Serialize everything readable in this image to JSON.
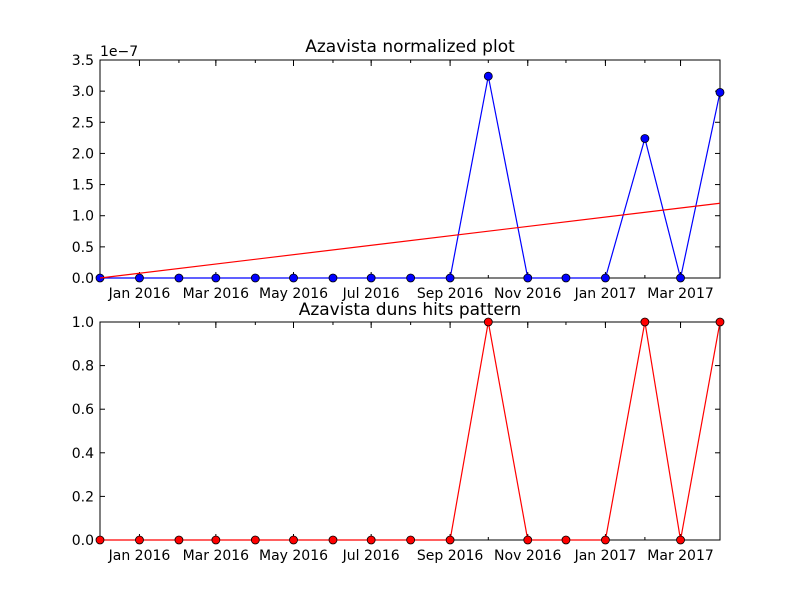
{
  "chart_data": [
    {
      "type": "line",
      "title": "Azavista normalized plot",
      "xlabel": "",
      "ylabel": "",
      "y_offset_label": "1e−7",
      "x": [
        "2015-12-01",
        "2016-01-01",
        "2016-02-01",
        "2016-03-01",
        "2016-04-01",
        "2016-05-01",
        "2016-06-01",
        "2016-07-01",
        "2016-08-01",
        "2016-09-01",
        "2016-10-01",
        "2016-11-01",
        "2016-12-01",
        "2017-01-01",
        "2017-02-01",
        "2017-03-01",
        "2017-04-01"
      ],
      "xlim": [
        "2015-12-01",
        "2017-04-01"
      ],
      "x_ticks": [
        "Jan 2016",
        "Mar 2016",
        "May 2016",
        "Jul 2016",
        "Sep 2016",
        "Nov 2016",
        "Jan 2017",
        "Mar 2017"
      ],
      "x_tick_dates": [
        "2016-01-01",
        "2016-03-01",
        "2016-05-01",
        "2016-07-01",
        "2016-09-01",
        "2016-11-01",
        "2017-01-01",
        "2017-03-01"
      ],
      "ylim": [
        0,
        3.5
      ],
      "y_ticks": [
        "0.0",
        "0.5",
        "1.0",
        "1.5",
        "2.0",
        "2.5",
        "3.0",
        "3.5"
      ],
      "grid": false,
      "series": [
        {
          "color": "#0000ff",
          "marker": "circle",
          "values": [
            0,
            0,
            0,
            0,
            0,
            0,
            0,
            0,
            0,
            0,
            3.24,
            0,
            0,
            0,
            2.24,
            0,
            2.98
          ]
        },
        {
          "color": "#ff0000",
          "marker": "none",
          "kind": "trend",
          "values": [
            0,
            1.2
          ],
          "x": [
            "2015-12-01",
            "2017-04-01"
          ]
        }
      ]
    },
    {
      "type": "line",
      "title": "Azavista duns hits pattern",
      "xlabel": "",
      "ylabel": "",
      "x": [
        "2015-12-01",
        "2016-01-01",
        "2016-02-01",
        "2016-03-01",
        "2016-04-01",
        "2016-05-01",
        "2016-06-01",
        "2016-07-01",
        "2016-08-01",
        "2016-09-01",
        "2016-10-01",
        "2016-11-01",
        "2016-12-01",
        "2017-01-01",
        "2017-02-01",
        "2017-03-01",
        "2017-04-01"
      ],
      "xlim": [
        "2015-12-01",
        "2017-04-01"
      ],
      "x_ticks": [
        "Jan 2016",
        "Mar 2016",
        "May 2016",
        "Jul 2016",
        "Sep 2016",
        "Nov 2016",
        "Jan 2017",
        "Mar 2017"
      ],
      "x_tick_dates": [
        "2016-01-01",
        "2016-03-01",
        "2016-05-01",
        "2016-07-01",
        "2016-09-01",
        "2016-11-01",
        "2017-01-01",
        "2017-03-01"
      ],
      "ylim": [
        0,
        1.0
      ],
      "y_ticks": [
        "0.0",
        "0.2",
        "0.4",
        "0.6",
        "0.8",
        "1.0"
      ],
      "grid": false,
      "series": [
        {
          "color": "#ff0000",
          "marker": "circle",
          "values": [
            0,
            0,
            0,
            0,
            0,
            0,
            0,
            0,
            0,
            0,
            1,
            0,
            0,
            0,
            1,
            0,
            1
          ]
        }
      ]
    }
  ]
}
